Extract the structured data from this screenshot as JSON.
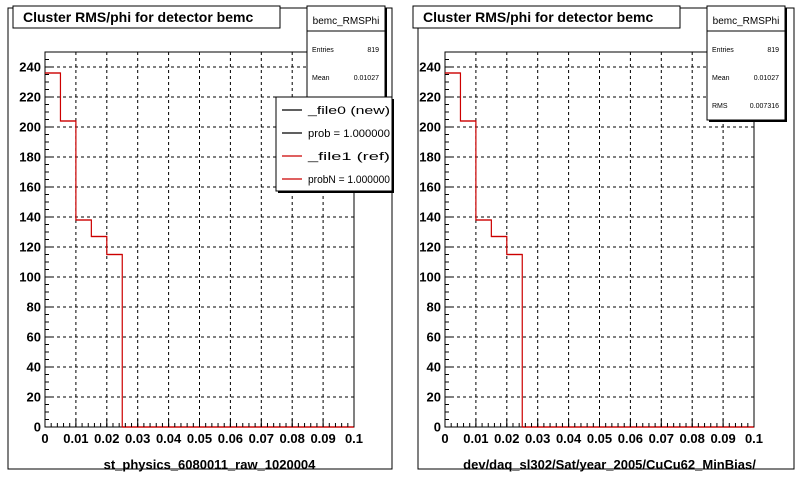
{
  "chart_data": [
    {
      "type": "histogram",
      "title": "Cluster RMS/phi for detector bemc",
      "xlabel": "st_physics_6080011_raw_1020004",
      "xlim": [
        0,
        0.1
      ],
      "ylim": [
        0,
        250
      ],
      "xticks": [
        "0",
        "0.01",
        "0.02",
        "0.03",
        "0.04",
        "0.05",
        "0.06",
        "0.07",
        "0.08",
        "0.09",
        "0.1"
      ],
      "yticks": [
        "0",
        "20",
        "40",
        "60",
        "80",
        "100",
        "120",
        "140",
        "160",
        "180",
        "200",
        "220",
        "240"
      ],
      "grid": true,
      "bin_edges": [
        0,
        0.005,
        0.01,
        0.015,
        0.02,
        0.025,
        0.1
      ],
      "series": [
        {
          "name": "_file1 (ref)",
          "color": "#cc0000",
          "values": [
            236,
            204,
            138,
            127,
            115,
            0
          ]
        }
      ],
      "stats": {
        "name": "bemc_RMSPhi",
        "rows": [
          {
            "label": "Entries",
            "value": "819"
          },
          {
            "label": "Mean",
            "value": "0.01027"
          }
        ]
      },
      "legend": {
        "placement": "top-right",
        "entries": [
          {
            "label": "_file0 (new)",
            "color": "#000000"
          },
          {
            "label": "prob = 1.000000",
            "color": "#000000"
          },
          {
            "label": "_file1 (ref)",
            "color": "#cc0000"
          },
          {
            "label": "probN = 1.000000",
            "color": "#cc0000"
          }
        ]
      }
    },
    {
      "type": "histogram",
      "title": "Cluster RMS/phi for detector bemc",
      "xlabel": "dev/daq_sl302/Sat/year_2005/CuCu62_MinBias/",
      "xlim": [
        0,
        0.1
      ],
      "ylim": [
        0,
        250
      ],
      "xticks": [
        "0",
        "0.01",
        "0.02",
        "0.03",
        "0.04",
        "0.05",
        "0.06",
        "0.07",
        "0.08",
        "0.09",
        "0.1"
      ],
      "yticks": [
        "0",
        "20",
        "40",
        "60",
        "80",
        "100",
        "120",
        "140",
        "160",
        "180",
        "200",
        "220",
        "240"
      ],
      "grid": true,
      "bin_edges": [
        0,
        0.005,
        0.01,
        0.015,
        0.02,
        0.025,
        0.1
      ],
      "series": [
        {
          "name": "bemc_RMSPhi",
          "color": "#cc0000",
          "values": [
            236,
            204,
            138,
            127,
            115,
            0
          ]
        }
      ],
      "stats": {
        "name": "bemc_RMSPhi",
        "rows": [
          {
            "label": "Entries",
            "value": "819"
          },
          {
            "label": "Mean",
            "value": "0.01027"
          },
          {
            "label": "RMS",
            "value": "0.007316"
          }
        ]
      }
    }
  ]
}
